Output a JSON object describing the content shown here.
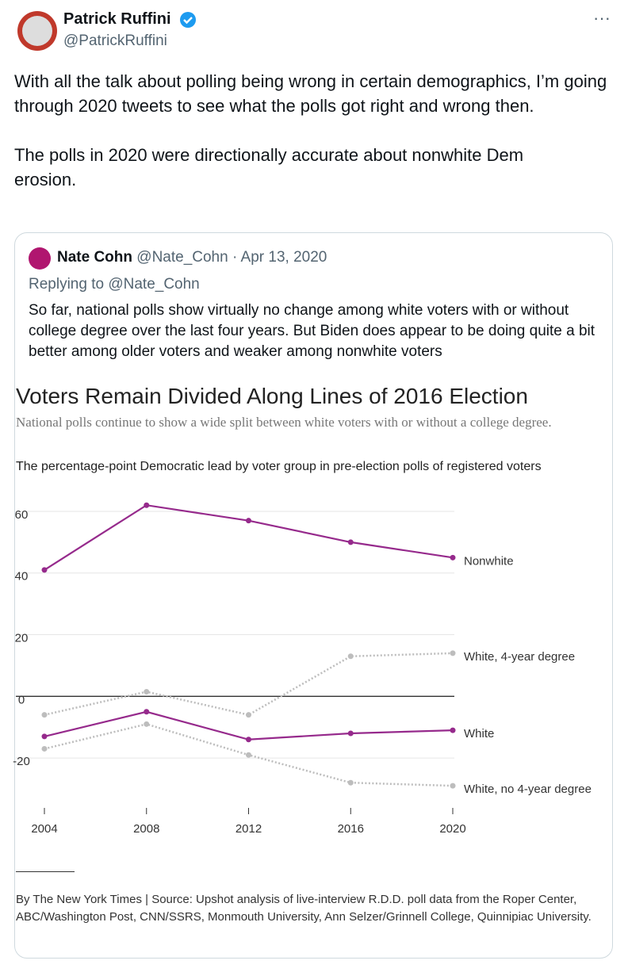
{
  "author": {
    "name": "Patrick Ruffini",
    "handle": "@PatrickRuffini"
  },
  "tweet": {
    "paragraphs": [
      "With all the talk about polling being wrong in certain demographics, I’m going through 2020 tweets to see what the polls got right and wrong then.",
      "The polls in 2020 were directionally accurate about nonwhite Dem erosion."
    ]
  },
  "quote": {
    "name": "Nate Cohn",
    "meta": "@Nate_Cohn · Apr 13, 2020",
    "replying": "Replying to @Nate_Cohn",
    "text": "So far, national polls show virtually no change among white voters with or without college degree over the last four years. But Biden does appear to be doing quite a bit better among older voters and weaker among nonwhite voters"
  },
  "chart_data": {
    "type": "line",
    "title": "Voters Remain Divided Along Lines of 2016 Election",
    "subtitle": "National polls continue to show a wide split between white voters with or without a college degree.",
    "description": "The percentage-point Democratic lead by voter group in pre-election polls of registered voters",
    "source": "By The New York Times | Source: Upshot analysis of live-interview R.D.D. poll data from the Roper Center, ABC/Washington Post, CNN/SSRS, Monmouth University, Ann Selzer/Grinnell College, Quinnipiac University.",
    "x": [
      2004,
      2008,
      2012,
      2016,
      2020
    ],
    "xlim": [
      2004,
      2020
    ],
    "xticks": [
      2004,
      2008,
      2012,
      2016,
      2020
    ],
    "ylim": [
      -30,
      60
    ],
    "yticks": [
      60,
      40,
      20,
      0,
      -20
    ],
    "grid": true,
    "series": [
      {
        "name": "Nonwhite",
        "color": "#962a8c",
        "dashed": false,
        "values": [
          41,
          62,
          57,
          50,
          45
        ]
      },
      {
        "name": "White, 4-year degree",
        "color": "#bdbdbd",
        "dashed": true,
        "values": [
          -6,
          1.5,
          -6,
          13,
          14
        ]
      },
      {
        "name": "White",
        "color": "#962a8c",
        "dashed": false,
        "values": [
          -13,
          -5,
          -14,
          -12,
          -11
        ]
      },
      {
        "name": "White, no 4-year degree",
        "color": "#bdbdbd",
        "dashed": true,
        "values": [
          -17,
          -9,
          -19,
          -28,
          -29
        ]
      }
    ]
  }
}
